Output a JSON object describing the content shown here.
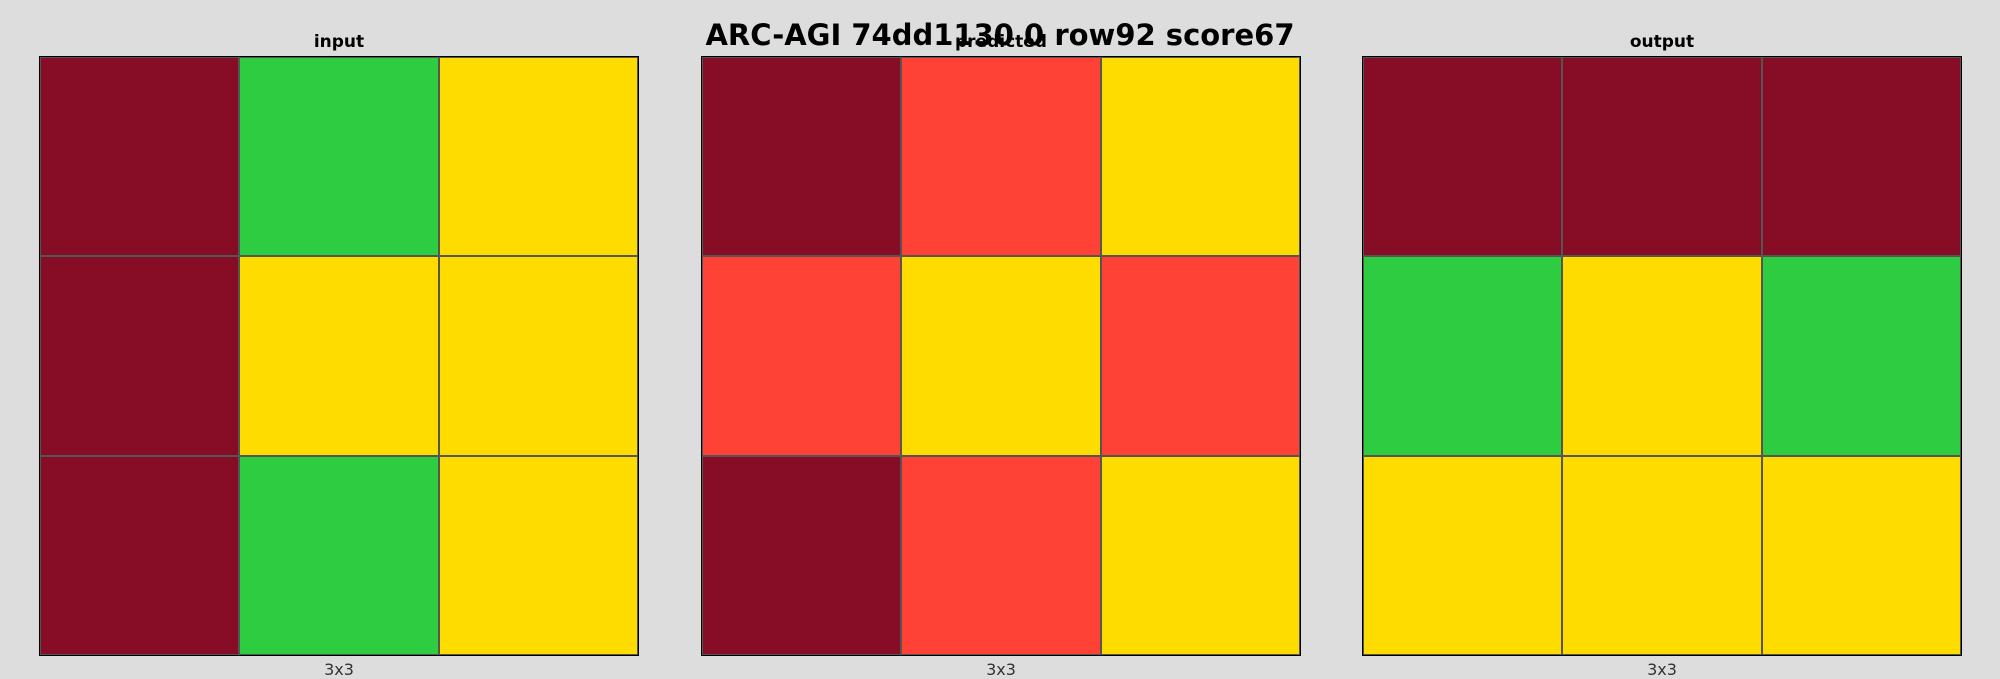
{
  "title": "ARC-AGI 74dd1130 0 row92 score67",
  "palette": {
    "1": "#870c25",
    "2": "#2ecc40",
    "3": "#ffdc00",
    "4": "#ff4136"
  },
  "panels": [
    {
      "label": "input",
      "dims": "3x3",
      "grid": [
        [
          1,
          2,
          3
        ],
        [
          1,
          3,
          3
        ],
        [
          1,
          2,
          3
        ]
      ]
    },
    {
      "label": "predicted",
      "dims": "3x3",
      "grid": [
        [
          1,
          4,
          3
        ],
        [
          4,
          3,
          4
        ],
        [
          1,
          4,
          3
        ]
      ]
    },
    {
      "label": "output",
      "dims": "3x3",
      "grid": [
        [
          1,
          1,
          1
        ],
        [
          2,
          3,
          2
        ],
        [
          3,
          3,
          3
        ]
      ]
    }
  ]
}
